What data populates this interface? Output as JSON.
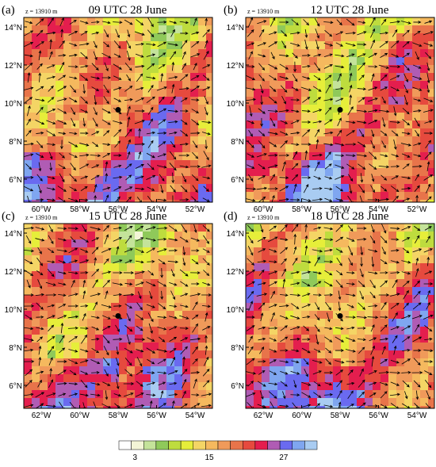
{
  "panels": [
    {
      "label": "(a)",
      "height": "z = 13910 m",
      "title": "09 UTC 28 June",
      "xticks": [
        "60°W",
        "58°W",
        "56°W",
        "54°W",
        "52°W"
      ],
      "yticks": [
        "6°N",
        "8°N",
        "10°N",
        "12°N",
        "14°N"
      ]
    },
    {
      "label": "(b)",
      "height": "z = 13910 m",
      "title": "12 UTC 28 June",
      "xticks": [
        "60°W",
        "58°W",
        "56°W",
        "54°W",
        "52°W"
      ],
      "yticks": [
        "6°N",
        "8°N",
        "10°N",
        "12°N",
        "14°N"
      ]
    },
    {
      "label": "(c)",
      "height": "z = 13910 m",
      "title": "15 UTC 28 June",
      "xticks": [
        "62°W",
        "60°W",
        "58°W",
        "56°W",
        "54°W"
      ],
      "yticks": [
        "6°N",
        "8°N",
        "10°N",
        "12°N",
        "14°N"
      ]
    },
    {
      "label": "(d)",
      "height": "z = 13910 m",
      "title": "18 UTC 28 June",
      "xticks": [
        "62°W",
        "60°W",
        "58°W",
        "56°W",
        "54°W"
      ],
      "yticks": [
        "6°N",
        "8°N",
        "10°N",
        "12°N",
        "14°N"
      ]
    }
  ],
  "colorbar": {
    "labels": [
      "3",
      "15",
      "27"
    ],
    "colors": [
      "#ffffff",
      "#f3f5d6",
      "#c4e39a",
      "#8fc95a",
      "#bedc3e",
      "#e6ee3a",
      "#f4d565",
      "#f5b95e",
      "#f09a5a",
      "#e8744a",
      "#e64a3e",
      "#e41e4e",
      "#b05cb4",
      "#6a6af0",
      "#7fa6f0",
      "#a9ccf2"
    ]
  }
}
